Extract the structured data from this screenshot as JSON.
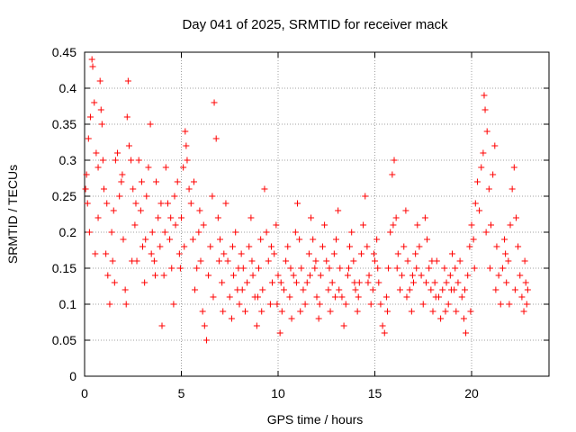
{
  "chart_data": {
    "type": "scatter",
    "title": "Day 041 of 2025, SRMTID for receiver mack",
    "xlabel": "GPS time / hours",
    "ylabel": "SRMTID / TECUs",
    "xlim": [
      0,
      24
    ],
    "ylim": [
      0,
      0.45
    ],
    "xticks": [
      0,
      5,
      10,
      15,
      20
    ],
    "yticks": [
      0,
      0.05,
      0.1,
      0.15,
      0.2,
      0.25,
      0.3,
      0.35,
      0.4,
      0.45
    ],
    "xtick_labels": [
      "0",
      "5",
      "10",
      "15",
      "20"
    ],
    "ytick_labels": [
      "0",
      "0.05",
      "0.1",
      "0.15",
      "0.2",
      "0.25",
      "0.3",
      "0.35",
      "0.4",
      "0.45"
    ],
    "grid": true,
    "marker": "+",
    "color": "#ff0000",
    "series": [
      {
        "name": "SRMTID",
        "points": [
          [
            0.05,
            0.26
          ],
          [
            0.1,
            0.28
          ],
          [
            0.15,
            0.24
          ],
          [
            0.2,
            0.33
          ],
          [
            0.3,
            0.36
          ],
          [
            0.38,
            0.44
          ],
          [
            0.42,
            0.43
          ],
          [
            0.5,
            0.38
          ],
          [
            0.6,
            0.31
          ],
          [
            0.7,
            0.29
          ],
          [
            0.8,
            0.41
          ],
          [
            0.85,
            0.37
          ],
          [
            0.9,
            0.35
          ],
          [
            1.0,
            0.26
          ],
          [
            1.1,
            0.17
          ],
          [
            1.2,
            0.14
          ],
          [
            1.3,
            0.1
          ],
          [
            1.4,
            0.2
          ],
          [
            1.5,
            0.23
          ],
          [
            1.6,
            0.3
          ],
          [
            1.7,
            0.31
          ],
          [
            1.8,
            0.25
          ],
          [
            1.9,
            0.27
          ],
          [
            2.0,
            0.19
          ],
          [
            2.1,
            0.12
          ],
          [
            2.2,
            0.36
          ],
          [
            2.25,
            0.41
          ],
          [
            2.3,
            0.32
          ],
          [
            2.4,
            0.3
          ],
          [
            2.5,
            0.26
          ],
          [
            2.6,
            0.21
          ],
          [
            2.7,
            0.16
          ],
          [
            2.8,
            0.3
          ],
          [
            2.9,
            0.23
          ],
          [
            3.0,
            0.18
          ],
          [
            3.1,
            0.13
          ],
          [
            3.2,
            0.25
          ],
          [
            3.3,
            0.29
          ],
          [
            3.4,
            0.35
          ],
          [
            3.5,
            0.2
          ],
          [
            3.6,
            0.16
          ],
          [
            3.7,
            0.27
          ],
          [
            3.8,
            0.22
          ],
          [
            3.9,
            0.18
          ],
          [
            4.0,
            0.07
          ],
          [
            4.1,
            0.14
          ],
          [
            4.2,
            0.29
          ],
          [
            4.3,
            0.24
          ],
          [
            4.4,
            0.19
          ],
          [
            4.5,
            0.15
          ],
          [
            4.6,
            0.1
          ],
          [
            4.7,
            0.21
          ],
          [
            4.8,
            0.27
          ],
          [
            4.9,
            0.17
          ],
          [
            5.0,
            0.22
          ],
          [
            5.1,
            0.29
          ],
          [
            5.2,
            0.34
          ],
          [
            5.25,
            0.32
          ],
          [
            5.3,
            0.3
          ],
          [
            5.4,
            0.26
          ],
          [
            5.5,
            0.24
          ],
          [
            5.6,
            0.19
          ],
          [
            5.7,
            0.12
          ],
          [
            5.8,
            0.15
          ],
          [
            5.9,
            0.2
          ],
          [
            6.0,
            0.16
          ],
          [
            6.1,
            0.09
          ],
          [
            6.2,
            0.07
          ],
          [
            6.3,
            0.05
          ],
          [
            6.4,
            0.14
          ],
          [
            6.5,
            0.18
          ],
          [
            6.6,
            0.25
          ],
          [
            6.7,
            0.38
          ],
          [
            6.8,
            0.33
          ],
          [
            6.9,
            0.22
          ],
          [
            7.0,
            0.19
          ],
          [
            7.1,
            0.13
          ],
          [
            7.2,
            0.17
          ],
          [
            7.3,
            0.24
          ],
          [
            7.4,
            0.16
          ],
          [
            7.5,
            0.11
          ],
          [
            7.6,
            0.08
          ],
          [
            7.7,
            0.14
          ],
          [
            7.8,
            0.2
          ],
          [
            7.9,
            0.12
          ],
          [
            8.0,
            0.1
          ],
          [
            8.1,
            0.17
          ],
          [
            8.2,
            0.15
          ],
          [
            8.3,
            0.09
          ],
          [
            8.4,
            0.13
          ],
          [
            8.5,
            0.18
          ],
          [
            8.6,
            0.22
          ],
          [
            8.7,
            0.14
          ],
          [
            8.8,
            0.11
          ],
          [
            8.9,
            0.07
          ],
          [
            9.0,
            0.15
          ],
          [
            9.1,
            0.19
          ],
          [
            9.2,
            0.12
          ],
          [
            9.3,
            0.26
          ],
          [
            9.4,
            0.2
          ],
          [
            9.5,
            0.16
          ],
          [
            9.6,
            0.1
          ],
          [
            9.7,
            0.13
          ],
          [
            9.8,
            0.17
          ],
          [
            9.9,
            0.21
          ],
          [
            10.0,
            0.14
          ],
          [
            10.1,
            0.06
          ],
          [
            10.2,
            0.09
          ],
          [
            10.3,
            0.12
          ],
          [
            10.4,
            0.16
          ],
          [
            10.5,
            0.18
          ],
          [
            10.6,
            0.11
          ],
          [
            10.7,
            0.08
          ],
          [
            10.8,
            0.14
          ],
          [
            10.9,
            0.2
          ],
          [
            11.0,
            0.24
          ],
          [
            11.1,
            0.19
          ],
          [
            11.2,
            0.15
          ],
          [
            11.3,
            0.12
          ],
          [
            11.4,
            0.1
          ],
          [
            11.5,
            0.13
          ],
          [
            11.6,
            0.17
          ],
          [
            11.7,
            0.22
          ],
          [
            11.8,
            0.19
          ],
          [
            11.9,
            0.15
          ],
          [
            12.0,
            0.11
          ],
          [
            12.1,
            0.08
          ],
          [
            12.2,
            0.14
          ],
          [
            12.3,
            0.18
          ],
          [
            12.4,
            0.21
          ],
          [
            12.5,
            0.16
          ],
          [
            12.6,
            0.12
          ],
          [
            12.7,
            0.09
          ],
          [
            12.8,
            0.13
          ],
          [
            12.9,
            0.17
          ],
          [
            13.0,
            0.19
          ],
          [
            13.1,
            0.23
          ],
          [
            13.2,
            0.15
          ],
          [
            13.3,
            0.11
          ],
          [
            13.4,
            0.07
          ],
          [
            13.5,
            0.1
          ],
          [
            13.6,
            0.14
          ],
          [
            13.7,
            0.18
          ],
          [
            13.8,
            0.2
          ],
          [
            13.9,
            0.16
          ],
          [
            14.0,
            0.12
          ],
          [
            14.1,
            0.09
          ],
          [
            14.2,
            0.13
          ],
          [
            14.3,
            0.17
          ],
          [
            14.4,
            0.21
          ],
          [
            14.5,
            0.25
          ],
          [
            14.6,
            0.18
          ],
          [
            14.7,
            0.14
          ],
          [
            14.8,
            0.1
          ],
          [
            14.9,
            0.12
          ],
          [
            15.0,
            0.16
          ],
          [
            15.1,
            0.19
          ],
          [
            15.2,
            0.13
          ],
          [
            15.3,
            0.1
          ],
          [
            15.4,
            0.07
          ],
          [
            15.5,
            0.06
          ],
          [
            15.6,
            0.11
          ],
          [
            15.7,
            0.15
          ],
          [
            15.8,
            0.2
          ],
          [
            15.9,
            0.28
          ],
          [
            16.0,
            0.3
          ],
          [
            16.1,
            0.22
          ],
          [
            16.2,
            0.17
          ],
          [
            16.3,
            0.12
          ],
          [
            16.4,
            0.14
          ],
          [
            16.5,
            0.18
          ],
          [
            16.6,
            0.23
          ],
          [
            16.7,
            0.16
          ],
          [
            16.8,
            0.12
          ],
          [
            16.9,
            0.09
          ],
          [
            17.0,
            0.13
          ],
          [
            17.1,
            0.17
          ],
          [
            17.2,
            0.21
          ],
          [
            17.3,
            0.18
          ],
          [
            17.4,
            0.14
          ],
          [
            17.5,
            0.1
          ],
          [
            17.6,
            0.22
          ],
          [
            17.7,
            0.19
          ],
          [
            17.8,
            0.15
          ],
          [
            17.9,
            0.12
          ],
          [
            18.0,
            0.09
          ],
          [
            18.1,
            0.13
          ],
          [
            18.2,
            0.16
          ],
          [
            18.3,
            0.11
          ],
          [
            18.4,
            0.08
          ],
          [
            18.5,
            0.12
          ],
          [
            18.6,
            0.15
          ],
          [
            18.7,
            0.13
          ],
          [
            18.8,
            0.1
          ],
          [
            18.9,
            0.14
          ],
          [
            19.0,
            0.17
          ],
          [
            19.1,
            0.12
          ],
          [
            19.2,
            0.09
          ],
          [
            19.3,
            0.13
          ],
          [
            19.4,
            0.16
          ],
          [
            19.5,
            0.11
          ],
          [
            19.6,
            0.08
          ],
          [
            19.7,
            0.06
          ],
          [
            19.8,
            0.14
          ],
          [
            19.9,
            0.18
          ],
          [
            20.0,
            0.21
          ],
          [
            20.1,
            0.19
          ],
          [
            20.2,
            0.24
          ],
          [
            20.3,
            0.27
          ],
          [
            20.4,
            0.23
          ],
          [
            20.5,
            0.29
          ],
          [
            20.6,
            0.31
          ],
          [
            20.65,
            0.39
          ],
          [
            20.7,
            0.37
          ],
          [
            20.8,
            0.34
          ],
          [
            20.9,
            0.26
          ],
          [
            21.0,
            0.21
          ],
          [
            21.1,
            0.28
          ],
          [
            21.2,
            0.32
          ],
          [
            21.3,
            0.18
          ],
          [
            21.4,
            0.14
          ],
          [
            21.5,
            0.1
          ],
          [
            21.6,
            0.15
          ],
          [
            21.7,
            0.19
          ],
          [
            21.8,
            0.13
          ],
          [
            21.9,
            0.16
          ],
          [
            22.0,
            0.21
          ],
          [
            22.1,
            0.26
          ],
          [
            22.2,
            0.29
          ],
          [
            22.3,
            0.22
          ],
          [
            22.4,
            0.18
          ],
          [
            22.5,
            0.14
          ],
          [
            22.6,
            0.11
          ],
          [
            22.7,
            0.09
          ],
          [
            22.8,
            0.13
          ],
          [
            22.9,
            0.12
          ],
          [
            0.25,
            0.2
          ],
          [
            0.55,
            0.17
          ],
          [
            1.15,
            0.24
          ],
          [
            1.55,
            0.13
          ],
          [
            2.15,
            0.1
          ],
          [
            2.65,
            0.24
          ],
          [
            3.15,
            0.19
          ],
          [
            3.65,
            0.14
          ],
          [
            4.15,
            0.2
          ],
          [
            4.65,
            0.25
          ],
          [
            5.15,
            0.18
          ],
          [
            5.65,
            0.27
          ],
          [
            6.15,
            0.21
          ],
          [
            6.65,
            0.11
          ],
          [
            7.15,
            0.09
          ],
          [
            7.65,
            0.18
          ],
          [
            8.15,
            0.12
          ],
          [
            8.65,
            0.16
          ],
          [
            9.15,
            0.09
          ],
          [
            9.65,
            0.18
          ],
          [
            10.15,
            0.13
          ],
          [
            10.65,
            0.15
          ],
          [
            11.15,
            0.09
          ],
          [
            11.65,
            0.14
          ],
          [
            12.15,
            0.1
          ],
          [
            12.65,
            0.15
          ],
          [
            13.15,
            0.12
          ],
          [
            13.65,
            0.15
          ],
          [
            14.15,
            0.11
          ],
          [
            14.65,
            0.13
          ],
          [
            15.15,
            0.15
          ],
          [
            15.65,
            0.09
          ],
          [
            16.15,
            0.15
          ],
          [
            16.65,
            0.11
          ],
          [
            17.15,
            0.15
          ],
          [
            17.65,
            0.13
          ],
          [
            18.15,
            0.11
          ],
          [
            18.65,
            0.09
          ],
          [
            19.15,
            0.15
          ],
          [
            19.65,
            0.12
          ],
          [
            20.15,
            0.15
          ],
          [
            20.75,
            0.2
          ],
          [
            21.25,
            0.12
          ],
          [
            21.75,
            0.17
          ],
          [
            22.25,
            0.12
          ],
          [
            22.75,
            0.16
          ],
          [
            0.95,
            0.3
          ],
          [
            1.95,
            0.28
          ],
          [
            2.95,
            0.27
          ],
          [
            3.95,
            0.24
          ],
          [
            4.95,
            0.15
          ],
          [
            5.95,
            0.23
          ],
          [
            6.95,
            0.16
          ],
          [
            7.95,
            0.15
          ],
          [
            8.95,
            0.11
          ],
          [
            9.95,
            0.1
          ],
          [
            10.95,
            0.13
          ],
          [
            11.95,
            0.16
          ],
          [
            12.95,
            0.11
          ],
          [
            13.95,
            0.13
          ],
          [
            14.95,
            0.17
          ],
          [
            15.95,
            0.21
          ],
          [
            16.95,
            0.14
          ],
          [
            17.95,
            0.16
          ],
          [
            18.95,
            0.12
          ],
          [
            19.95,
            0.09
          ],
          [
            20.95,
            0.15
          ],
          [
            21.95,
            0.1
          ],
          [
            22.85,
            0.1
          ],
          [
            0.7,
            0.22
          ],
          [
            1.45,
            0.16
          ],
          [
            2.45,
            0.16
          ],
          [
            3.45,
            0.17
          ],
          [
            4.45,
            0.22
          ]
        ]
      }
    ]
  }
}
